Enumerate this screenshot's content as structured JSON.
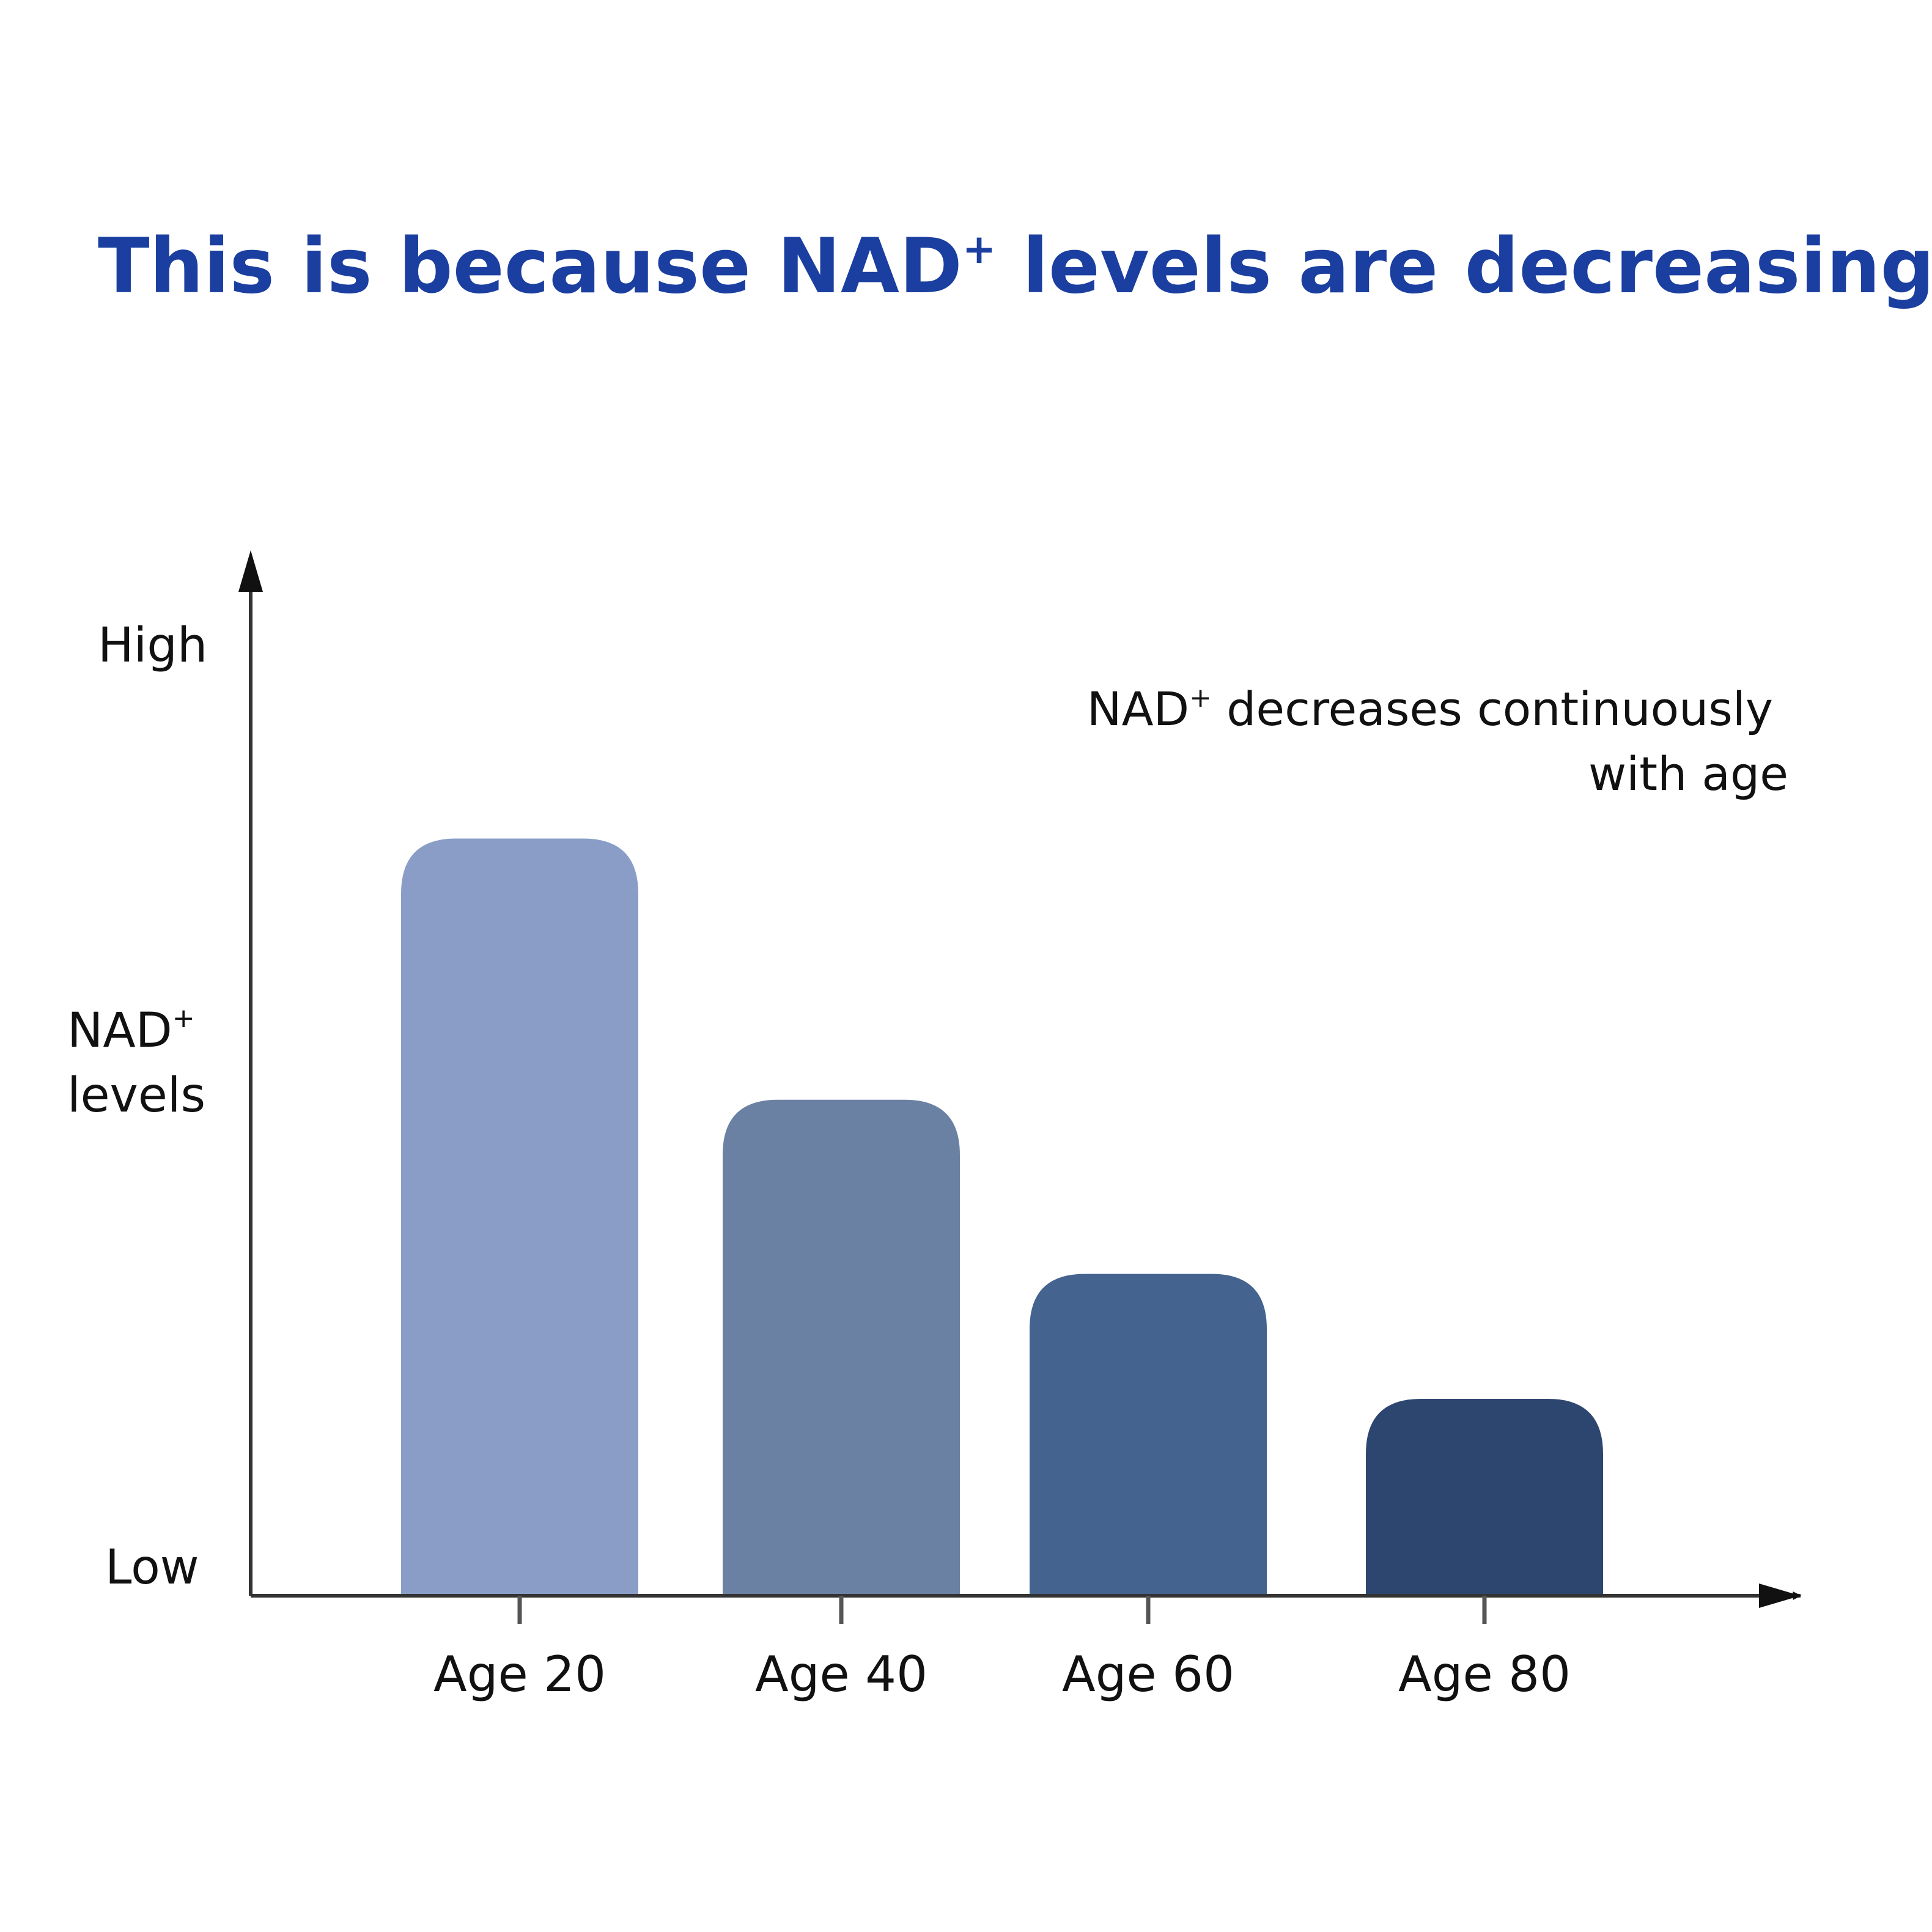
{
  "chart_data": {
    "type": "bar",
    "title_main": "This is because NAD",
    "title_sup": "+",
    "title_rest": " levels are decreasing",
    "y_axis": {
      "label_line1": "NAD",
      "label_sup": "+",
      "label_line2": "levels",
      "high_label": "High",
      "low_label": "Low"
    },
    "annotation": {
      "line1_main": "NAD",
      "line1_sup": "+",
      "line1_rest": " decreases continuously",
      "line2": "with age"
    },
    "categories": [
      "Age 20",
      "Age 40",
      "Age 60",
      "Age 80"
    ],
    "values": [
      100,
      65.5,
      42.5,
      26
    ],
    "ylim": [
      0,
      130
    ],
    "colors": [
      "#8a9dc7",
      "#6a81a3",
      "#44638f",
      "#2d4670"
    ],
    "axis_color": "#333333",
    "grid": false,
    "legend": "none"
  }
}
